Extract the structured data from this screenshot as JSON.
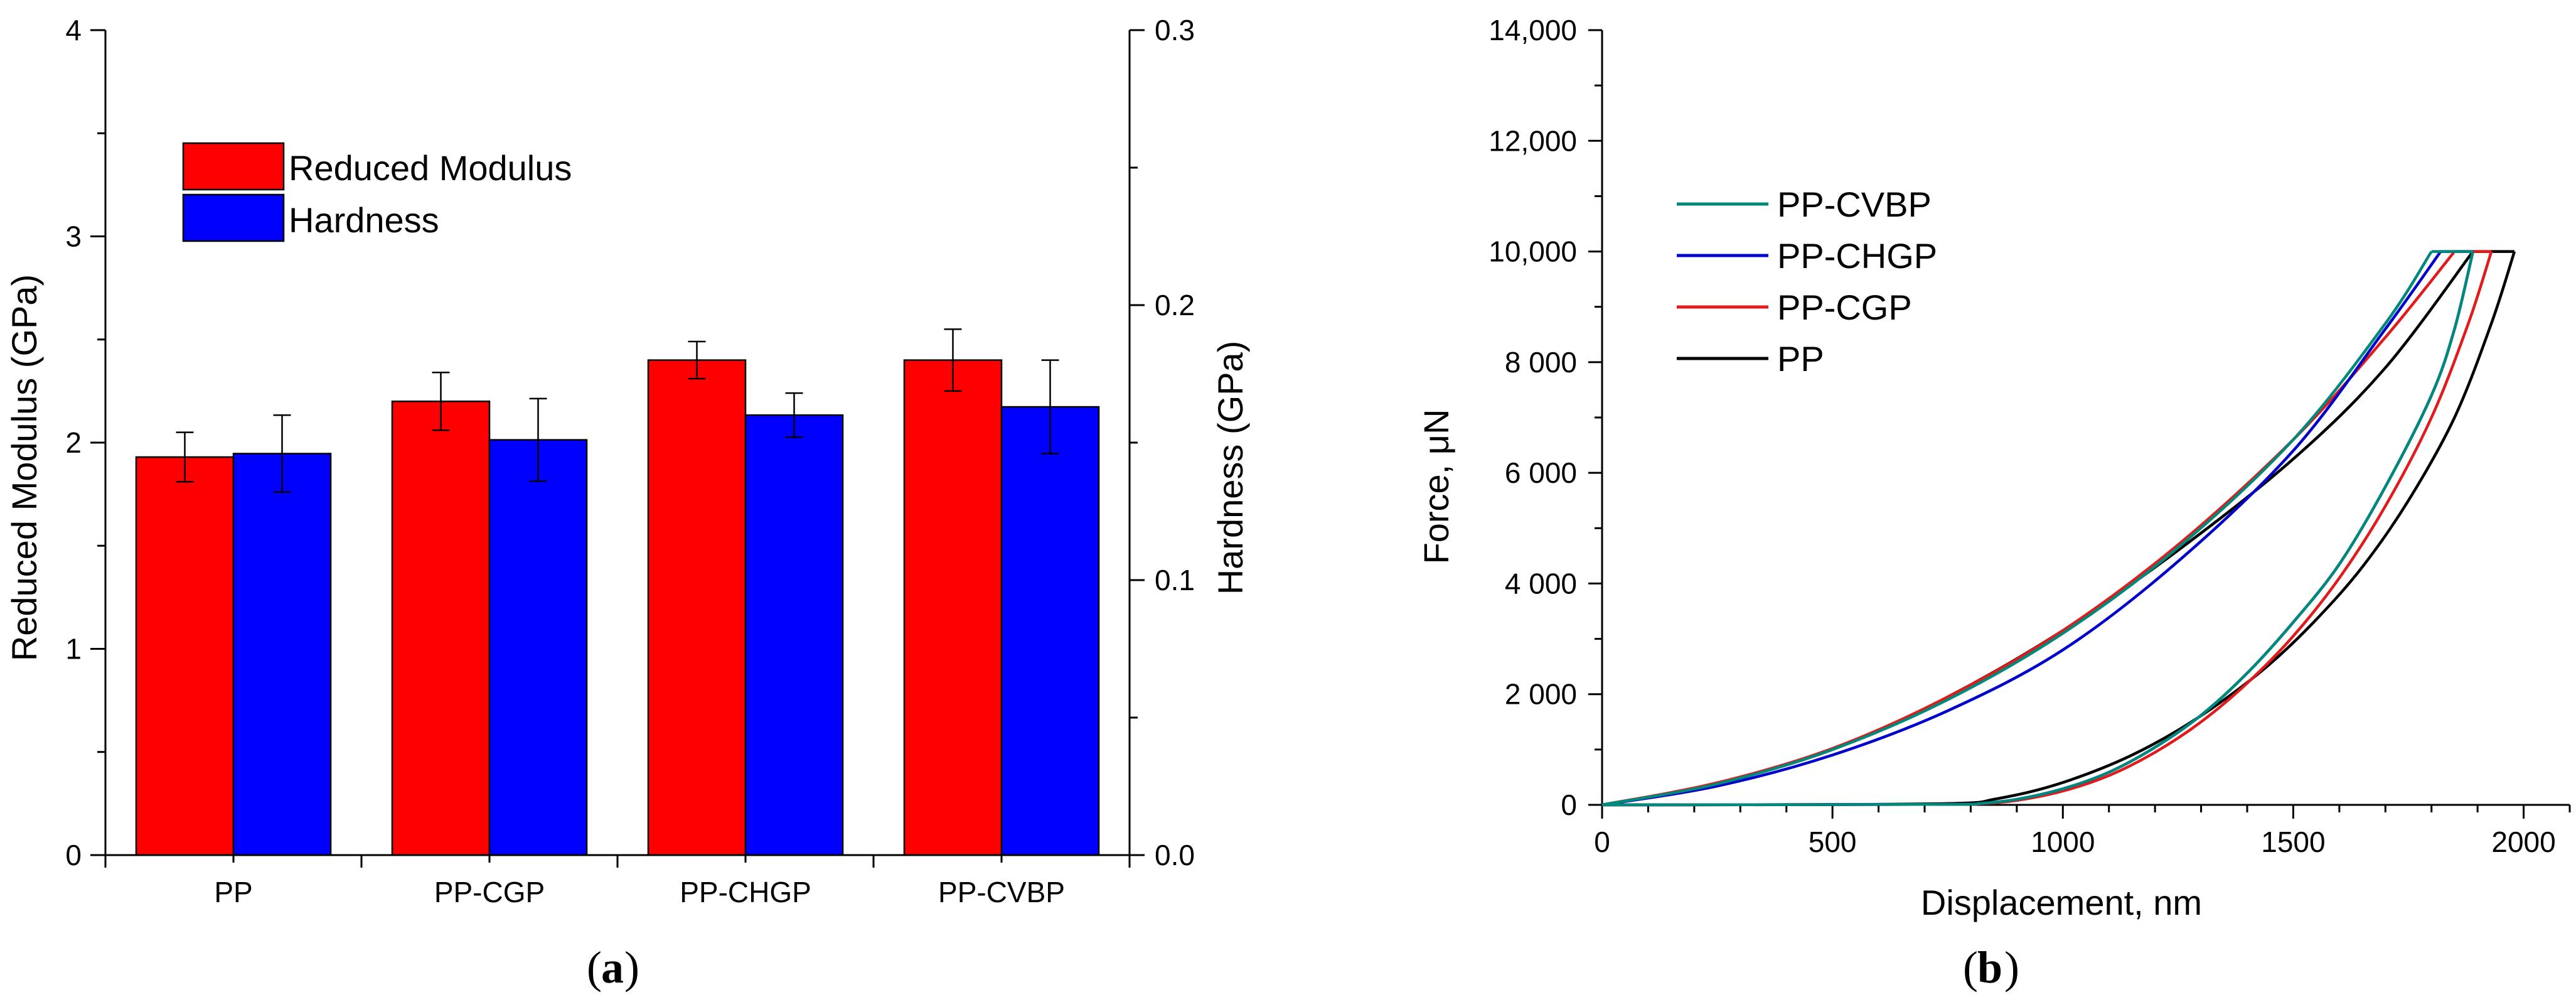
{
  "chart_data": [
    {
      "type": "bar",
      "panel_label": "a",
      "categories": [
        "PP",
        "PP-CGP",
        "PP-CHGP",
        "PP-CVBP"
      ],
      "series": [
        {
          "name": "Reduced Modulus",
          "axis": "left",
          "color": "#ff0000",
          "values": [
            1.93,
            2.2,
            2.4,
            2.4
          ],
          "errors": [
            0.12,
            0.14,
            0.09,
            0.15
          ]
        },
        {
          "name": "Hardness",
          "axis": "right",
          "color": "#0000ff",
          "values": [
            0.146,
            0.151,
            0.16,
            0.163
          ],
          "errors": [
            0.014,
            0.015,
            0.008,
            0.017
          ]
        }
      ],
      "ylabel": "Reduced Modulus (GPa)",
      "y2label": "Hardness (GPa)",
      "ylim": [
        0,
        4
      ],
      "y2lim": [
        0,
        0.3
      ],
      "yticks": [
        "0",
        "1",
        "2",
        "3",
        "4"
      ],
      "y2ticks": [
        "0.0",
        "0.1",
        "0.2",
        "0.3"
      ],
      "legend_position": "top-left"
    },
    {
      "type": "line",
      "panel_label": "b",
      "xlabel": "Displacement, nm",
      "ylabel": "Force, μN",
      "xlim": [
        0,
        2100
      ],
      "ylim": [
        0,
        14000
      ],
      "xticks": [
        "0",
        "500",
        "1000",
        "1500",
        "2000"
      ],
      "yticks": [
        "0",
        "2 000",
        "4 000",
        "6 000",
        "8 000",
        "10,000",
        "12,000",
        "14,000"
      ],
      "legend_position": "top-left",
      "series": [
        {
          "name": "PP-CVBP",
          "color": "#00897b",
          "loading": {
            "x": [
              0,
              250,
              500,
              750,
              1000,
              1250,
              1500,
              1700,
              1800
            ],
            "y": [
              0,
              380,
              1000,
              1900,
              3100,
              4650,
              6600,
              8700,
              10000
            ]
          },
          "unloading": {
            "x": [
              1890,
              1850,
              1800,
              1700,
              1600,
              1500,
              1400,
              1300,
              1200,
              1100,
              1000,
              900,
              820,
              780,
              500,
              0
            ],
            "y": [
              10000,
              8600,
              7400,
              5750,
              4350,
              3300,
              2380,
              1620,
              1040,
              590,
              290,
              100,
              25,
              10,
              5,
              0
            ]
          }
        },
        {
          "name": "PP-CHGP",
          "color": "#0000cc",
          "loading": {
            "x": [
              0,
              250,
              500,
              750,
              1000,
              1250,
              1500,
              1700,
              1820
            ],
            "y": [
              0,
              340,
              900,
              1700,
              2800,
              4400,
              6400,
              8600,
              10000
            ]
          },
          "unloading": {
            "x": [
              1890,
              1850,
              1800,
              1700,
              1600,
              1500,
              1400,
              1300,
              1200,
              1100,
              1000,
              900,
              820,
              780,
              500,
              0
            ],
            "y": [
              10000,
              8600,
              7400,
              5750,
              4350,
              3300,
              2380,
              1620,
              1040,
              590,
              290,
              100,
              25,
              10,
              5,
              0
            ]
          }
        },
        {
          "name": "PP-CGP",
          "color": "#e31a1c",
          "loading": {
            "x": [
              0,
              250,
              500,
              750,
              1000,
              1250,
              1500,
              1700,
              1850
            ],
            "y": [
              0,
              400,
              1020,
              1950,
              3150,
              4700,
              6600,
              8450,
              10000
            ]
          },
          "unloading": {
            "x": [
              1930,
              1880,
              1800,
              1700,
              1600,
              1500,
              1400,
              1300,
              1200,
              1100,
              1000,
              900,
              820,
              780,
              500,
              0
            ],
            "y": [
              10000,
              8700,
              7000,
              5400,
              4100,
              3050,
              2200,
              1500,
              950,
              530,
              250,
              80,
              20,
              10,
              5,
              0
            ]
          }
        },
        {
          "name": "PP",
          "color": "#000000",
          "loading": {
            "x": [
              0,
              250,
              500,
              750,
              1000,
              1250,
              1500,
              1700,
              1890
            ],
            "y": [
              0,
              390,
              1000,
              1950,
              3150,
              4600,
              6250,
              7900,
              10000
            ]
          },
          "unloading": {
            "x": [
              1980,
              1930,
              1850,
              1750,
              1650,
              1550,
              1450,
              1350,
              1250,
              1150,
              1050,
              950,
              850,
              780,
              500,
              0
            ],
            "y": [
              10000,
              8700,
              7000,
              5500,
              4300,
              3350,
              2550,
              1900,
              1350,
              900,
              550,
              280,
              100,
              30,
              5,
              0
            ]
          }
        }
      ]
    }
  ]
}
